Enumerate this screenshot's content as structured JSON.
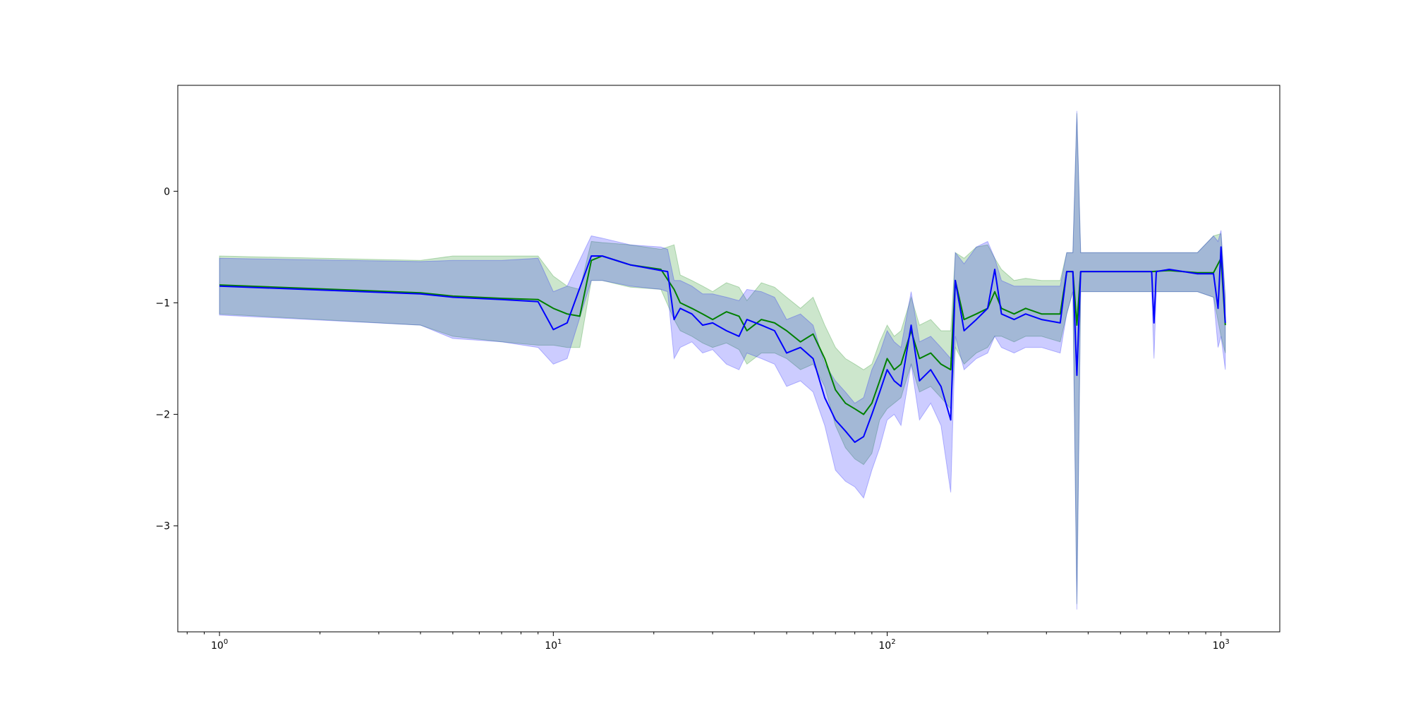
{
  "chart_data": {
    "type": "line",
    "title": "",
    "xlabel": "",
    "ylabel": "",
    "x_scale": "log",
    "xlim": [
      0.75,
      1500
    ],
    "ylim": [
      -3.95,
      0.95
    ],
    "grid": false,
    "legend": "none",
    "x_ticks": [
      {
        "value": 1,
        "base": "10",
        "exp": "0"
      },
      {
        "value": 10,
        "base": "10",
        "exp": "1"
      },
      {
        "value": 100,
        "base": "10",
        "exp": "2"
      },
      {
        "value": 1000,
        "base": "10",
        "exp": "3"
      }
    ],
    "y_ticks": [
      {
        "value": 0,
        "label": "0"
      },
      {
        "value": -1,
        "label": "−1"
      },
      {
        "value": -2,
        "label": "−2"
      },
      {
        "value": -3,
        "label": "−3"
      }
    ],
    "series": [
      {
        "color": "#008000",
        "band_color": "#008000",
        "band_opacity": 0.2,
        "points": [
          [
            1,
            -0.84,
            -0.58,
            -1.1
          ],
          [
            4,
            -0.91,
            -0.62,
            -1.2
          ],
          [
            5,
            -0.94,
            -0.58,
            -1.3
          ],
          [
            7,
            -0.96,
            -0.58,
            -1.35
          ],
          [
            9,
            -0.97,
            -0.58,
            -1.38
          ],
          [
            10,
            -1.05,
            -0.76,
            -1.38
          ],
          [
            11,
            -1.1,
            -0.85,
            -1.4
          ],
          [
            12,
            -1.12,
            -0.88,
            -1.4
          ],
          [
            13,
            -0.62,
            -0.45,
            -0.8
          ],
          [
            14,
            -0.58,
            -0.46,
            -0.8
          ],
          [
            17,
            -0.66,
            -0.48,
            -0.86
          ],
          [
            21,
            -0.7,
            -0.52,
            -0.88
          ],
          [
            23,
            -0.88,
            -0.48,
            -1.15
          ],
          [
            24,
            -1.0,
            -0.75,
            -1.25
          ],
          [
            26,
            -1.05,
            -0.8,
            -1.3
          ],
          [
            28,
            -1.1,
            -0.85,
            -1.36
          ],
          [
            30,
            -1.15,
            -0.9,
            -1.4
          ],
          [
            33,
            -1.08,
            -0.82,
            -1.36
          ],
          [
            36,
            -1.12,
            -0.86,
            -1.42
          ],
          [
            38,
            -1.25,
            -0.98,
            -1.55
          ],
          [
            42,
            -1.15,
            -0.82,
            -1.45
          ],
          [
            46,
            -1.18,
            -0.86,
            -1.45
          ],
          [
            50,
            -1.25,
            -0.95,
            -1.5
          ],
          [
            55,
            -1.35,
            -1.05,
            -1.6
          ],
          [
            60,
            -1.28,
            -0.95,
            -1.55
          ],
          [
            65,
            -1.5,
            -1.2,
            -1.75
          ],
          [
            70,
            -1.78,
            -1.4,
            -2.1
          ],
          [
            75,
            -1.9,
            -1.5,
            -2.3
          ],
          [
            80,
            -1.95,
            -1.55,
            -2.4
          ],
          [
            85,
            -2.0,
            -1.6,
            -2.45
          ],
          [
            90,
            -1.9,
            -1.55,
            -2.35
          ],
          [
            95,
            -1.7,
            -1.35,
            -2.05
          ],
          [
            100,
            -1.5,
            -1.2,
            -1.95
          ],
          [
            105,
            -1.6,
            -1.3,
            -1.9
          ],
          [
            110,
            -1.55,
            -1.25,
            -1.85
          ],
          [
            118,
            -1.25,
            -0.95,
            -1.55
          ],
          [
            125,
            -1.5,
            -1.2,
            -1.8
          ],
          [
            135,
            -1.45,
            -1.15,
            -1.75
          ],
          [
            145,
            -1.55,
            -1.25,
            -1.85
          ],
          [
            155,
            -1.6,
            -1.25,
            -1.95
          ],
          [
            160,
            -0.8,
            -0.55,
            -1.4
          ],
          [
            170,
            -1.15,
            -0.6,
            -1.55
          ],
          [
            185,
            -1.1,
            -0.5,
            -1.45
          ],
          [
            200,
            -1.05,
            -0.48,
            -1.4
          ],
          [
            210,
            -0.9,
            -0.6,
            -1.3
          ],
          [
            220,
            -1.05,
            -0.7,
            -1.3
          ],
          [
            240,
            -1.1,
            -0.8,
            -1.35
          ],
          [
            260,
            -1.05,
            -0.78,
            -1.3
          ],
          [
            290,
            -1.1,
            -0.8,
            -1.3
          ],
          [
            330,
            -1.1,
            -0.8,
            -1.35
          ],
          [
            345,
            -0.72,
            -0.55,
            -1.1
          ],
          [
            360,
            -0.72,
            -0.55,
            -0.9
          ],
          [
            370,
            -1.2,
            0.7,
            -3.7
          ],
          [
            380,
            -0.72,
            -0.55,
            -0.9
          ],
          [
            620,
            -0.72,
            -0.55,
            -0.9
          ],
          [
            700,
            -0.71,
            -0.55,
            -0.9
          ],
          [
            850,
            -0.73,
            -0.55,
            -0.9
          ],
          [
            950,
            -0.73,
            -0.4,
            -0.95
          ],
          [
            1000,
            -0.6,
            -0.38,
            -1.3
          ],
          [
            1030,
            -1.2,
            -0.95,
            -1.45
          ]
        ]
      },
      {
        "color": "#0000ff",
        "band_color": "#0000ff",
        "band_opacity": 0.2,
        "points": [
          [
            1,
            -0.85,
            -0.6,
            -1.11
          ],
          [
            4,
            -0.92,
            -0.63,
            -1.2
          ],
          [
            5,
            -0.95,
            -0.62,
            -1.32
          ],
          [
            7,
            -0.97,
            -0.62,
            -1.35
          ],
          [
            9,
            -0.99,
            -0.6,
            -1.4
          ],
          [
            10,
            -1.24,
            -0.9,
            -1.55
          ],
          [
            11,
            -1.18,
            -0.85,
            -1.5
          ],
          [
            13,
            -0.58,
            -0.4,
            -0.8
          ],
          [
            14,
            -0.58,
            -0.42,
            -0.8
          ],
          [
            17,
            -0.66,
            -0.48,
            -0.85
          ],
          [
            21,
            -0.71,
            -0.5,
            -0.88
          ],
          [
            22,
            -0.72,
            -0.52,
            -0.9
          ],
          [
            23,
            -1.15,
            -0.8,
            -1.5
          ],
          [
            24,
            -1.05,
            -0.8,
            -1.4
          ],
          [
            26,
            -1.1,
            -0.85,
            -1.35
          ],
          [
            28,
            -1.2,
            -0.92,
            -1.45
          ],
          [
            30,
            -1.18,
            -0.92,
            -1.42
          ],
          [
            33,
            -1.25,
            -0.95,
            -1.55
          ],
          [
            36,
            -1.3,
            -0.98,
            -1.6
          ],
          [
            38,
            -1.15,
            -0.88,
            -1.45
          ],
          [
            42,
            -1.2,
            -0.9,
            -1.5
          ],
          [
            46,
            -1.25,
            -0.95,
            -1.55
          ],
          [
            50,
            -1.45,
            -1.15,
            -1.75
          ],
          [
            55,
            -1.4,
            -1.1,
            -1.7
          ],
          [
            60,
            -1.5,
            -1.2,
            -1.8
          ],
          [
            65,
            -1.85,
            -1.55,
            -2.1
          ],
          [
            70,
            -2.05,
            -1.7,
            -2.5
          ],
          [
            75,
            -2.15,
            -1.8,
            -2.6
          ],
          [
            80,
            -2.25,
            -1.9,
            -2.65
          ],
          [
            85,
            -2.2,
            -1.85,
            -2.75
          ],
          [
            90,
            -2.0,
            -1.6,
            -2.5
          ],
          [
            95,
            -1.8,
            -1.45,
            -2.3
          ],
          [
            100,
            -1.6,
            -1.25,
            -2.05
          ],
          [
            105,
            -1.7,
            -1.35,
            -2.0
          ],
          [
            110,
            -1.75,
            -1.4,
            -2.1
          ],
          [
            118,
            -1.2,
            -0.9,
            -1.55
          ],
          [
            125,
            -1.7,
            -1.35,
            -2.05
          ],
          [
            135,
            -1.6,
            -1.3,
            -1.9
          ],
          [
            145,
            -1.75,
            -1.4,
            -2.1
          ],
          [
            155,
            -2.05,
            -1.5,
            -2.7
          ],
          [
            160,
            -0.8,
            -0.55,
            -1.3
          ],
          [
            170,
            -1.25,
            -0.65,
            -1.6
          ],
          [
            185,
            -1.15,
            -0.5,
            -1.5
          ],
          [
            200,
            -1.05,
            -0.45,
            -1.45
          ],
          [
            210,
            -0.7,
            -0.6,
            -1.3
          ],
          [
            220,
            -1.1,
            -0.8,
            -1.4
          ],
          [
            240,
            -1.15,
            -0.85,
            -1.45
          ],
          [
            260,
            -1.1,
            -0.85,
            -1.4
          ],
          [
            290,
            -1.15,
            -0.85,
            -1.4
          ],
          [
            330,
            -1.18,
            -0.85,
            -1.45
          ],
          [
            345,
            -0.72,
            -0.55,
            -1.1
          ],
          [
            360,
            -0.72,
            -0.55,
            -0.9
          ],
          [
            370,
            -1.65,
            0.72,
            -3.75
          ],
          [
            380,
            -0.72,
            -0.55,
            -0.9
          ],
          [
            620,
            -0.72,
            -0.55,
            -0.9
          ],
          [
            630,
            -1.18,
            -0.55,
            -1.5
          ],
          [
            640,
            -0.72,
            -0.55,
            -0.9
          ],
          [
            700,
            -0.7,
            -0.55,
            -0.9
          ],
          [
            850,
            -0.74,
            -0.55,
            -0.9
          ],
          [
            950,
            -0.74,
            -0.4,
            -0.95
          ],
          [
            980,
            -1.05,
            -0.45,
            -1.4
          ],
          [
            1000,
            -0.5,
            -0.35,
            -1.3
          ],
          [
            1030,
            -1.18,
            -0.95,
            -1.6
          ]
        ]
      }
    ]
  }
}
